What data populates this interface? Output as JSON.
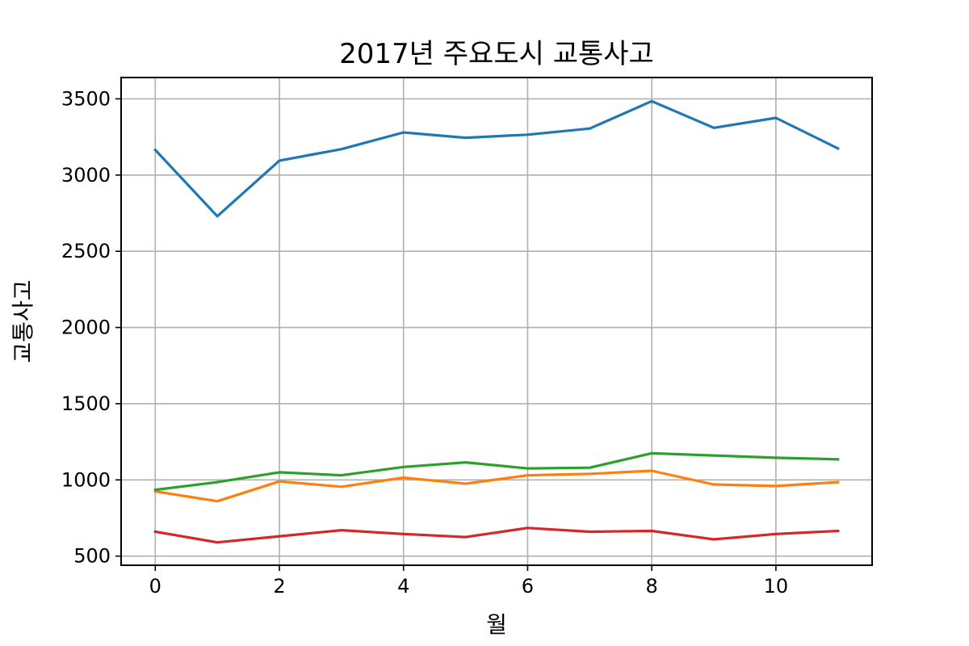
{
  "chart_data": {
    "type": "line",
    "title": "2017년 주요도시 교통사고",
    "xlabel": "월",
    "ylabel": "교통사고",
    "x": [
      0,
      1,
      2,
      3,
      4,
      5,
      6,
      7,
      8,
      9,
      10,
      11
    ],
    "xlim": [
      -0.55,
      11.55
    ],
    "ylim": [
      440,
      3640
    ],
    "xticks": [
      0,
      2,
      4,
      6,
      8,
      10
    ],
    "xtick_labels": [
      "0",
      "2",
      "4",
      "6",
      "8",
      "10"
    ],
    "yticks": [
      500,
      1000,
      1500,
      2000,
      2500,
      3000,
      3500
    ],
    "ytick_labels": [
      "500",
      "1000",
      "1500",
      "2000",
      "2500",
      "3000",
      "3500"
    ],
    "grid": true,
    "series": [
      {
        "color": "#1f77b4",
        "values": [
          3165,
          2730,
          3095,
          3170,
          3280,
          3245,
          3265,
          3305,
          3485,
          3310,
          3375,
          3175
        ]
      },
      {
        "color": "#ff7f0e",
        "values": [
          925,
          860,
          990,
          955,
          1015,
          975,
          1030,
          1040,
          1060,
          970,
          960,
          985
        ]
      },
      {
        "color": "#2ca02c",
        "values": [
          935,
          985,
          1050,
          1030,
          1085,
          1115,
          1075,
          1080,
          1175,
          1160,
          1145,
          1135
        ]
      },
      {
        "color": "#d62728",
        "values": [
          660,
          590,
          630,
          670,
          645,
          625,
          685,
          660,
          665,
          610,
          645,
          665
        ]
      }
    ]
  }
}
